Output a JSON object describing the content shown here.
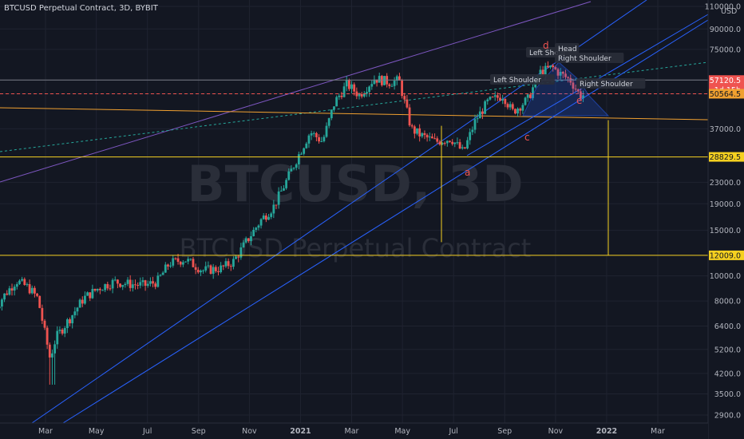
{
  "header": {
    "title": "BTCUSD Perpetual Contract, 3D, BYBIT",
    "currency": "USD"
  },
  "watermark": {
    "symbol": "BTCUSD, 3D",
    "description": "BTCUSD Perpetual Contract"
  },
  "colors": {
    "background": "#131722",
    "grid": "#1f2330",
    "up_candle": "#26a69a",
    "down_candle": "#ef5350",
    "orange_line": "#f0a030",
    "yellow_line": "#f5d020",
    "blue_line": "#2962ff",
    "purple_line": "#7e57c2",
    "teal_dotted": "#26a69a"
  },
  "chart_data": {
    "type": "candlestick",
    "y_scale": "log",
    "y_ticks": [
      "110000.0",
      "90000.0",
      "75000.0",
      "57120.5",
      "50564.5",
      "37000.0",
      "28829.5",
      "23000.0",
      "19000.0",
      "15000.0",
      "12009.0",
      "10000.0",
      "8000.0",
      "6400.0",
      "5200.0",
      "4200.0",
      "3500.0",
      "2900.0"
    ],
    "x_ticks": [
      "Mar",
      "May",
      "Jul",
      "Sep",
      "Nov",
      "2021",
      "Mar",
      "May",
      "Jul",
      "Sep",
      "Nov",
      "2022",
      "Mar"
    ],
    "x_tick_values": [
      2020.167,
      2020.333,
      2020.5,
      2020.667,
      2020.833,
      2021.0,
      2021.167,
      2021.333,
      2021.5,
      2021.667,
      2021.833,
      2022.0,
      2022.167
    ],
    "series_anchors": [
      [
        2020.0,
        7200
      ],
      [
        2020.04,
        8400
      ],
      [
        2020.08,
        9600
      ],
      [
        2020.12,
        9000
      ],
      [
        2020.15,
        8200
      ],
      [
        2020.19,
        4800
      ],
      [
        2020.21,
        5800
      ],
      [
        2020.26,
        7000
      ],
      [
        2020.3,
        8200
      ],
      [
        2020.35,
        9000
      ],
      [
        2020.4,
        9500
      ],
      [
        2020.45,
        9300
      ],
      [
        2020.5,
        9200
      ],
      [
        2020.54,
        9500
      ],
      [
        2020.58,
        11200
      ],
      [
        2020.63,
        11600
      ],
      [
        2020.69,
        10500
      ],
      [
        2020.75,
        10700
      ],
      [
        2020.79,
        11400
      ],
      [
        2020.83,
        13500
      ],
      [
        2020.88,
        16500
      ],
      [
        2020.92,
        18500
      ],
      [
        2020.96,
        23000
      ],
      [
        2021.0,
        29000
      ],
      [
        2021.04,
        36000
      ],
      [
        2021.08,
        33000
      ],
      [
        2021.12,
        47000
      ],
      [
        2021.16,
        55000
      ],
      [
        2021.2,
        50000
      ],
      [
        2021.25,
        58000
      ],
      [
        2021.3,
        56000
      ],
      [
        2021.33,
        57000
      ],
      [
        2021.37,
        37000
      ],
      [
        2021.4,
        35000
      ],
      [
        2021.45,
        33000
      ],
      [
        2021.5,
        34000
      ],
      [
        2021.54,
        30000
      ],
      [
        2021.58,
        40000
      ],
      [
        2021.62,
        47000
      ],
      [
        2021.67,
        50000
      ],
      [
        2021.7,
        43000
      ],
      [
        2021.75,
        48000
      ],
      [
        2021.79,
        61000
      ],
      [
        2021.83,
        64000
      ],
      [
        2021.86,
        60000
      ],
      [
        2021.89,
        57000
      ],
      [
        2021.92,
        50000
      ]
    ],
    "price_labels": [
      {
        "value": "57120.5",
        "sub": "1d 15h",
        "color": "#ef5350"
      },
      {
        "value": "50564.5",
        "sub": "",
        "color": "#f0a030"
      },
      {
        "value": "28829.5",
        "sub": "",
        "color": "#f5d020"
      },
      {
        "value": "12009.0",
        "sub": "",
        "color": "#f5d020"
      }
    ],
    "annotations": {
      "left_shoulder_1": "Left Shoulder",
      "left_shoulder_2": "Left Shoul",
      "head": "Head",
      "right_shoulder_1": "Right Shoulder",
      "right_shoulder_2": "Right Shoulder",
      "wave_a": "a",
      "wave_c": "c",
      "wave_d": "d",
      "wave_e": "e"
    },
    "levels": {
      "red_dashed": 52000,
      "orange_dashed": 50564.5,
      "yellow_upper": 28829.5,
      "yellow_lower": 12009.0,
      "grey_upper": 57120.5
    },
    "grid": true
  }
}
